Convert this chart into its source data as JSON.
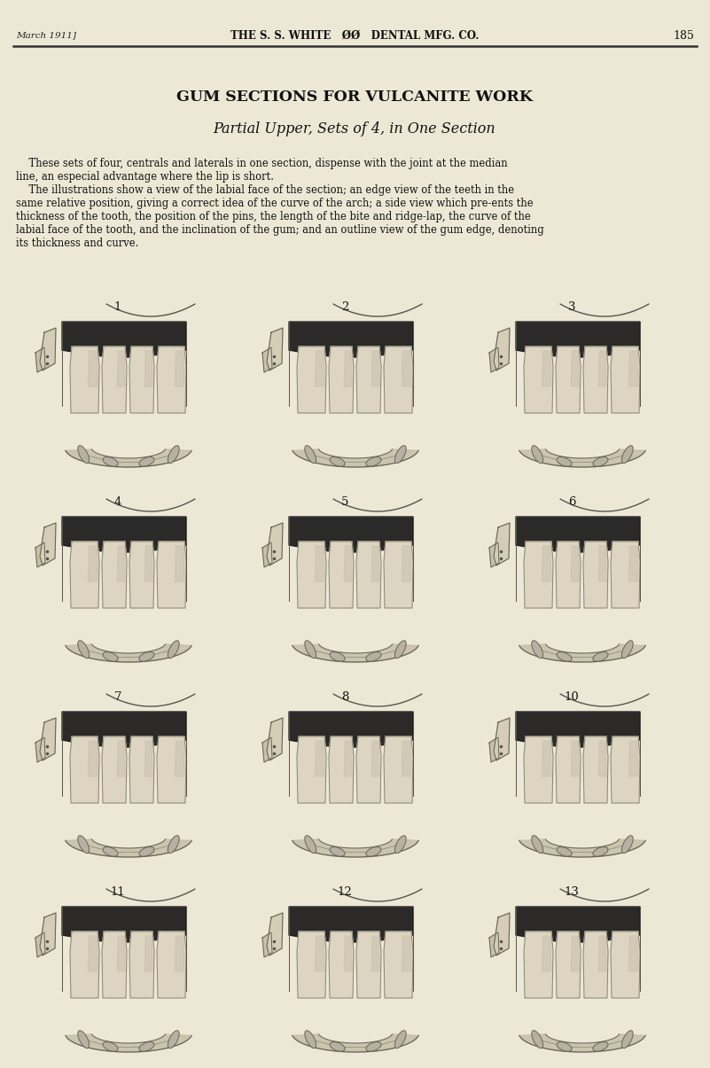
{
  "bg_color": "#ede8d5",
  "page_width": 8.01,
  "page_height": 12.05,
  "header_left": "March 1911]",
  "header_center_text": "THE S. S. WHITE    SS    DENTAL MFG. CO.",
  "header_page": "185",
  "title1": "GUM SECTIONS FOR VULCANITE WORK",
  "title2": "Partial Upper, Sets of 4, in One Section",
  "body_para1_lines": [
    "    These sets of four, centrals and laterals in one section, dispense with the joint at the median",
    "line, an especial advantage where the lip is short."
  ],
  "body_para2_lines": [
    "    The illustrations show a view of the labial face of the section; an edge view of the teeth in the",
    "same relative position, giving a correct idea of the curve of the arch; a side view which pre-ents the",
    "thickness of the tooth, the position of the pins, the length of the bite and ridge-lap, the curve of the",
    "labial face of the tooth, and the inclination of the gum; and an outline view of the gum edge, denoting",
    "its thickness and curve."
  ],
  "numbers": [
    "1",
    "2",
    "3",
    "4",
    "5",
    "6",
    "7",
    "8",
    "10",
    "11",
    "12",
    "13"
  ]
}
